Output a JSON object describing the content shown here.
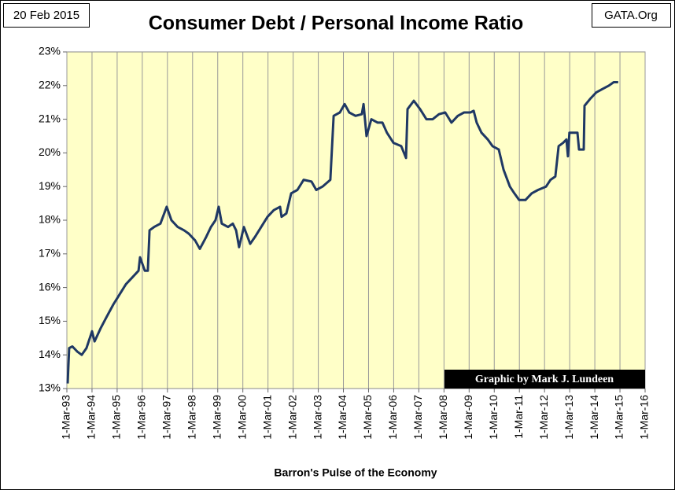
{
  "chart_data": {
    "type": "line",
    "title": "Consumer Debt / Personal Income Ratio",
    "date_note": "20 Feb 2015",
    "source_note": "GATA.Org",
    "credit": "Graphic by Mark J. Lundeen",
    "xlabel": "Barron's Pulse of the Economy",
    "color": "#1f3864",
    "background": "#ffffc8",
    "grid": "x",
    "x": [
      1993.19,
      1993.25,
      1993.38,
      1993.57,
      1993.75,
      1993.94,
      1994.16,
      1994.26,
      1994.51,
      1994.72,
      1995.01,
      1995.26,
      1995.51,
      1995.76,
      1996.01,
      1996.07,
      1996.26,
      1996.38,
      1996.45,
      1996.63,
      1996.88,
      1997.13,
      1997.32,
      1997.57,
      1997.82,
      1998.01,
      1998.26,
      1998.45,
      1998.7,
      1998.89,
      1999.07,
      1999.2,
      1999.32,
      1999.57,
      1999.76,
      1999.89,
      2000.01,
      2000.2,
      2000.45,
      2000.64,
      2000.89,
      2001.14,
      2001.39,
      2001.64,
      2001.7,
      2001.89,
      2002.08,
      2002.33,
      2002.58,
      2002.89,
      2003.08,
      2003.33,
      2003.64,
      2003.77,
      2004.02,
      2004.21,
      2004.39,
      2004.64,
      2004.89,
      2004.96,
      2005.08,
      2005.27,
      2005.52,
      2005.71,
      2005.89,
      2006.15,
      2006.46,
      2006.65,
      2006.71,
      2006.96,
      2007.21,
      2007.46,
      2007.71,
      2007.96,
      2008.21,
      2008.46,
      2008.71,
      2008.96,
      2009.21,
      2009.34,
      2009.46,
      2009.65,
      2009.9,
      2010.09,
      2010.34,
      2010.53,
      2010.78,
      2010.96,
      2011.15,
      2011.4,
      2011.65,
      2011.9,
      2012.22,
      2012.4,
      2012.59,
      2012.72,
      2012.9,
      2013.03,
      2013.09,
      2013.15,
      2013.47,
      2013.53,
      2013.72,
      2013.75,
      2013.97,
      2014.22,
      2014.47,
      2014.72,
      2014.91,
      2015.09
    ],
    "values": [
      13.15,
      14.2,
      14.25,
      14.1,
      14.0,
      14.2,
      14.7,
      14.4,
      14.8,
      15.1,
      15.5,
      15.8,
      16.1,
      16.3,
      16.5,
      16.9,
      16.5,
      16.5,
      17.7,
      17.8,
      17.9,
      18.4,
      18.0,
      17.8,
      17.7,
      17.6,
      17.4,
      17.15,
      17.5,
      17.8,
      18.0,
      18.4,
      17.9,
      17.8,
      17.9,
      17.7,
      17.2,
      17.8,
      17.3,
      17.5,
      17.8,
      18.1,
      18.3,
      18.4,
      18.1,
      18.2,
      18.8,
      18.9,
      19.2,
      19.15,
      18.9,
      19.0,
      19.2,
      21.1,
      21.2,
      21.45,
      21.2,
      21.1,
      21.15,
      21.45,
      20.5,
      21.0,
      20.9,
      20.9,
      20.6,
      20.3,
      20.2,
      19.85,
      21.3,
      21.55,
      21.3,
      21.0,
      21.0,
      21.15,
      21.2,
      20.9,
      21.1,
      21.2,
      21.2,
      21.25,
      20.9,
      20.6,
      20.4,
      20.2,
      20.1,
      19.5,
      19.0,
      18.8,
      18.6,
      18.6,
      18.8,
      18.9,
      19.0,
      19.2,
      19.3,
      20.2,
      20.3,
      20.4,
      19.9,
      20.6,
      20.6,
      20.1,
      20.1,
      21.4,
      21.6,
      21.8,
      21.9,
      22.0,
      22.1,
      22.1
    ],
    "xlim": [
      1993.16,
      2016.16
    ],
    "xticks": [
      {
        "value": 1993.16,
        "label": "1-Mar-93"
      },
      {
        "value": 1994.16,
        "label": "1-Mar-94"
      },
      {
        "value": 1995.16,
        "label": "1-Mar-95"
      },
      {
        "value": 1996.16,
        "label": "1-Mar-96"
      },
      {
        "value": 1997.16,
        "label": "1-Mar-97"
      },
      {
        "value": 1998.16,
        "label": "1-Mar-98"
      },
      {
        "value": 1999.16,
        "label": "1-Mar-99"
      },
      {
        "value": 2000.16,
        "label": "1-Mar-00"
      },
      {
        "value": 2001.16,
        "label": "1-Mar-01"
      },
      {
        "value": 2002.16,
        "label": "1-Mar-02"
      },
      {
        "value": 2003.16,
        "label": "1-Mar-03"
      },
      {
        "value": 2004.16,
        "label": "1-Mar-04"
      },
      {
        "value": 2005.16,
        "label": "1-Mar-05"
      },
      {
        "value": 2006.16,
        "label": "1-Mar-06"
      },
      {
        "value": 2007.16,
        "label": "1-Mar-07"
      },
      {
        "value": 2008.16,
        "label": "1-Mar-08"
      },
      {
        "value": 2009.16,
        "label": "1-Mar-09"
      },
      {
        "value": 2010.16,
        "label": "1-Mar-10"
      },
      {
        "value": 2011.16,
        "label": "1-Mar-11"
      },
      {
        "value": 2012.16,
        "label": "1-Mar-12"
      },
      {
        "value": 2013.16,
        "label": "1-Mar-13"
      },
      {
        "value": 2014.16,
        "label": "1-Mar-14"
      },
      {
        "value": 2015.16,
        "label": "1-Mar-15"
      },
      {
        "value": 2016.16,
        "label": "1-Mar-16"
      }
    ],
    "ylim": [
      13,
      23
    ],
    "yticks": [
      {
        "value": 13,
        "label": "13%"
      },
      {
        "value": 14,
        "label": "14%"
      },
      {
        "value": 15,
        "label": "15%"
      },
      {
        "value": 16,
        "label": "16%"
      },
      {
        "value": 17,
        "label": "17%"
      },
      {
        "value": 18,
        "label": "18%"
      },
      {
        "value": 19,
        "label": "19%"
      },
      {
        "value": 20,
        "label": "20%"
      },
      {
        "value": 21,
        "label": "21%"
      },
      {
        "value": 22,
        "label": "22%"
      },
      {
        "value": 23,
        "label": "23%"
      }
    ]
  }
}
